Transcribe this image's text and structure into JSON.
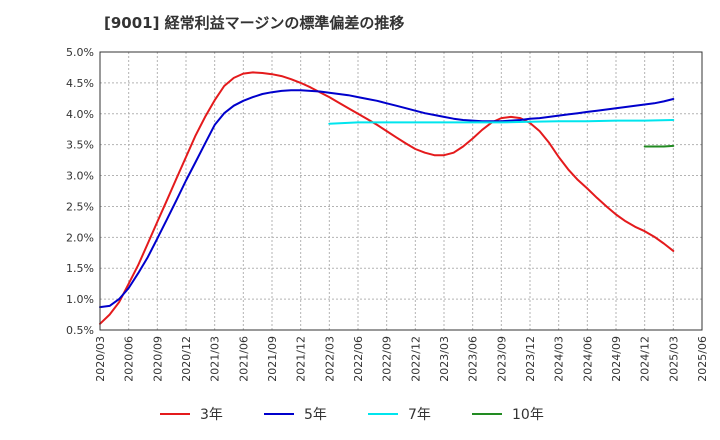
{
  "chart_data": {
    "type": "line",
    "title": "[9001]  経常利益マージンの標準偏差の推移",
    "xlabel": "",
    "ylabel": "",
    "ylim": [
      0.005,
      0.05
    ],
    "y_ticks": [
      "5.0%",
      "4.5%",
      "4.0%",
      "3.5%",
      "3.0%",
      "2.5%",
      "2.0%",
      "1.5%",
      "1.0%",
      "0.5%"
    ],
    "y_tick_values": [
      0.05,
      0.045,
      0.04,
      0.035,
      0.03,
      0.025,
      0.02,
      0.015,
      0.01,
      0.005
    ],
    "x_ticks": [
      "2020/03",
      "2020/06",
      "2020/09",
      "2020/12",
      "2021/03",
      "2021/06",
      "2021/09",
      "2021/12",
      "2022/03",
      "2022/06",
      "2022/09",
      "2022/12",
      "2023/03",
      "2023/06",
      "2023/09",
      "2023/12",
      "2024/03",
      "2024/06",
      "2024/09",
      "2024/12",
      "2025/03",
      "2025/06"
    ],
    "grid": true,
    "legend_position": "bottom",
    "series": [
      {
        "name": "3年",
        "color": "#e41a1c",
        "x": [
          "2020/03",
          "2020/04",
          "2020/05",
          "2020/06",
          "2020/07",
          "2020/08",
          "2020/09",
          "2020/10",
          "2020/11",
          "2020/12",
          "2021/01",
          "2021/02",
          "2021/03",
          "2021/04",
          "2021/05",
          "2021/06",
          "2021/07",
          "2021/08",
          "2021/09",
          "2021/10",
          "2021/11",
          "2021/12",
          "2022/01",
          "2022/02",
          "2022/03",
          "2022/04",
          "2022/05",
          "2022/06",
          "2022/07",
          "2022/08",
          "2022/09",
          "2022/10",
          "2022/11",
          "2022/12",
          "2023/01",
          "2023/02",
          "2023/03",
          "2023/04",
          "2023/05",
          "2023/06",
          "2023/07",
          "2023/08",
          "2023/09",
          "2023/10",
          "2023/11",
          "2023/12",
          "2024/01",
          "2024/02",
          "2024/03",
          "2024/04",
          "2024/05",
          "2024/06",
          "2024/07",
          "2024/08",
          "2024/09",
          "2024/10",
          "2024/11",
          "2024/12",
          "2025/01",
          "2025/02",
          "2025/03"
        ],
        "values": [
          0.006,
          0.0075,
          0.0095,
          0.0125,
          0.0155,
          0.019,
          0.0225,
          0.026,
          0.0295,
          0.033,
          0.0365,
          0.0395,
          0.0422,
          0.0445,
          0.0458,
          0.0465,
          0.0467,
          0.0466,
          0.0464,
          0.0461,
          0.0456,
          0.045,
          0.0443,
          0.0435,
          0.0427,
          0.0418,
          0.0409,
          0.04,
          0.0391,
          0.0382,
          0.0372,
          0.0362,
          0.0352,
          0.0343,
          0.0337,
          0.0333,
          0.0333,
          0.0337,
          0.0347,
          0.036,
          0.0374,
          0.0386,
          0.0393,
          0.0395,
          0.0393,
          0.0385,
          0.0372,
          0.0353,
          0.033,
          0.031,
          0.0293,
          0.0279,
          0.0264,
          0.025,
          0.0237,
          0.0226,
          0.0217,
          0.021,
          0.0201,
          0.019,
          0.0178
        ]
      },
      {
        "name": "5年",
        "color": "#0000cc",
        "x": [
          "2020/03",
          "2020/04",
          "2020/05",
          "2020/06",
          "2020/07",
          "2020/08",
          "2020/09",
          "2020/10",
          "2020/11",
          "2020/12",
          "2021/01",
          "2021/02",
          "2021/03",
          "2021/04",
          "2021/05",
          "2021/06",
          "2021/07",
          "2021/08",
          "2021/09",
          "2021/10",
          "2021/11",
          "2021/12",
          "2022/01",
          "2022/02",
          "2022/03",
          "2022/04",
          "2022/05",
          "2022/06",
          "2022/07",
          "2022/08",
          "2022/09",
          "2022/10",
          "2022/11",
          "2022/12",
          "2023/01",
          "2023/02",
          "2023/03",
          "2023/04",
          "2023/05",
          "2023/06",
          "2023/07",
          "2023/08",
          "2023/09",
          "2023/10",
          "2023/11",
          "2023/12",
          "2024/01",
          "2024/02",
          "2024/03",
          "2024/04",
          "2024/05",
          "2024/06",
          "2024/07",
          "2024/08",
          "2024/09",
          "2024/10",
          "2024/11",
          "2024/12",
          "2025/01",
          "2025/02",
          "2025/03"
        ],
        "values": [
          0.0087,
          0.0089,
          0.01,
          0.0118,
          0.0142,
          0.0168,
          0.0198,
          0.0229,
          0.026,
          0.0292,
          0.0322,
          0.0352,
          0.0382,
          0.0401,
          0.0413,
          0.0421,
          0.0427,
          0.0432,
          0.0435,
          0.0437,
          0.0438,
          0.0438,
          0.0437,
          0.0436,
          0.0434,
          0.0432,
          0.043,
          0.0427,
          0.0424,
          0.0421,
          0.0417,
          0.0413,
          0.0409,
          0.0405,
          0.0401,
          0.0398,
          0.0395,
          0.0392,
          0.039,
          0.0389,
          0.0388,
          0.0388,
          0.0388,
          0.0389,
          0.039,
          0.0392,
          0.0393,
          0.0395,
          0.0397,
          0.0399,
          0.0401,
          0.0403,
          0.0405,
          0.0407,
          0.0409,
          0.0411,
          0.0413,
          0.0415,
          0.0417,
          0.042,
          0.0424
        ]
      },
      {
        "name": "7年",
        "color": "#00e5ee",
        "x": [
          "2022/03",
          "2022/06",
          "2022/09",
          "2022/12",
          "2023/03",
          "2023/06",
          "2023/09",
          "2023/12",
          "2024/03",
          "2024/06",
          "2024/09",
          "2024/12",
          "2025/03"
        ],
        "values": [
          0.0384,
          0.0386,
          0.0386,
          0.0386,
          0.0386,
          0.0386,
          0.0386,
          0.0387,
          0.0388,
          0.0388,
          0.0389,
          0.0389,
          0.039
        ]
      },
      {
        "name": "10年",
        "color": "#228b22",
        "x": [
          "2024/12",
          "2025/01",
          "2025/02",
          "2025/03"
        ],
        "values": [
          0.0347,
          0.0347,
          0.0347,
          0.0348
        ]
      }
    ]
  }
}
